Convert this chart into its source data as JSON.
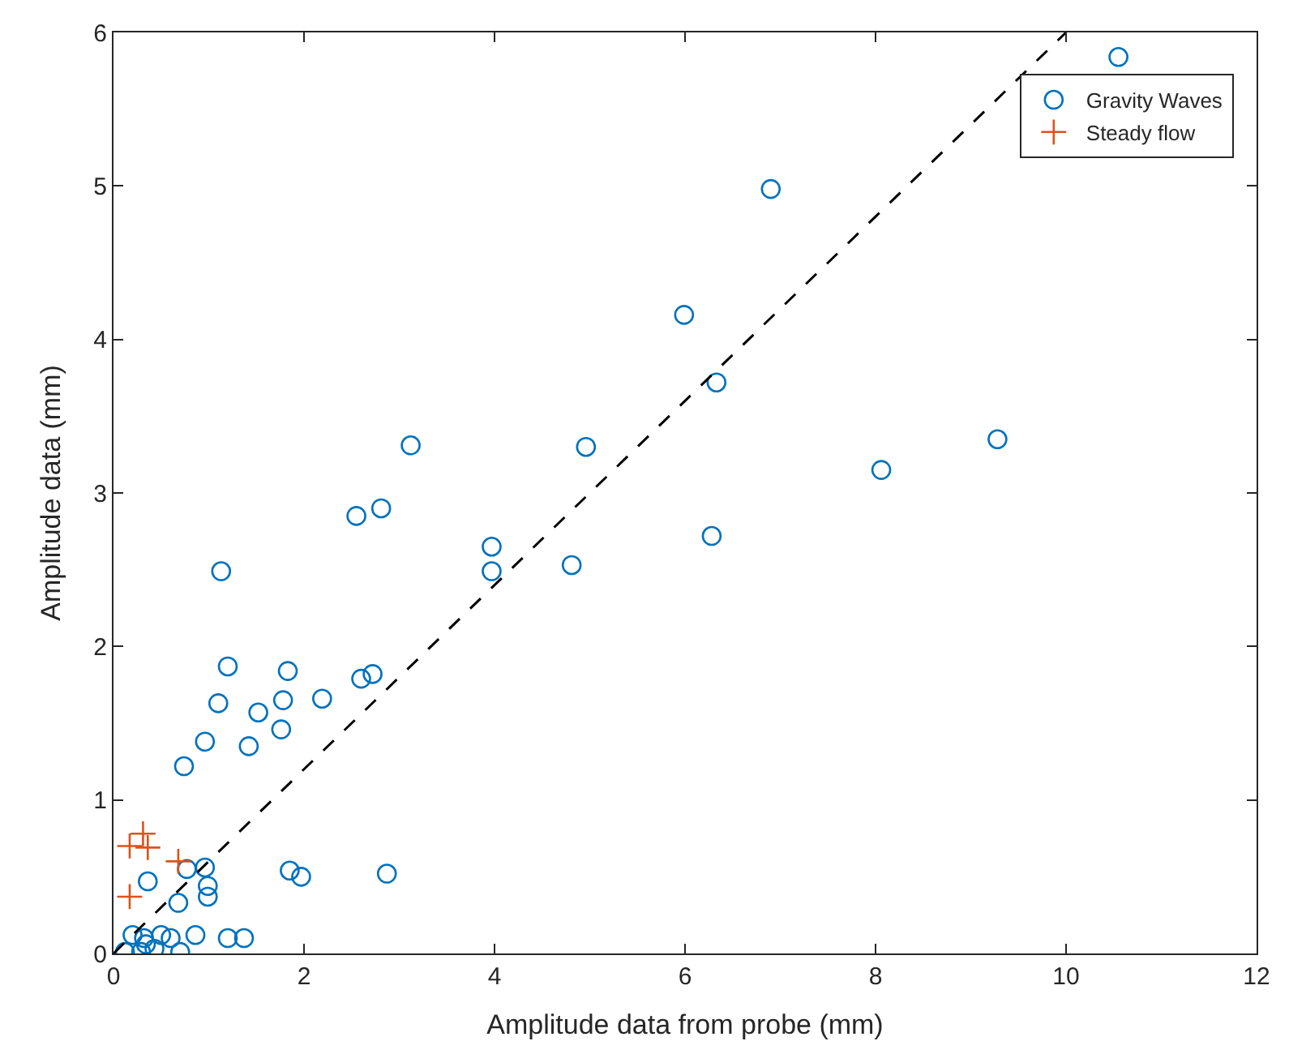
{
  "chart_data": {
    "type": "scatter",
    "xlabel": "Amplitude data from probe (mm)",
    "ylabel": "Amplitude data (mm)",
    "xlim": [
      0,
      12
    ],
    "xticks": [
      0,
      2,
      4,
      6,
      8,
      10,
      12
    ],
    "ylim": [
      0,
      6
    ],
    "yticks": [
      0,
      1,
      2,
      3,
      4,
      5,
      6
    ],
    "legend": "top right",
    "series": [
      {
        "name": "Gravity Waves",
        "color": "#0072bd",
        "marker": "circle",
        "x": [
          10.55,
          6.9,
          5.99,
          6.33,
          6.28,
          8.06,
          9.28,
          3.12,
          4.96,
          2.55,
          2.81,
          1.13,
          3.97,
          3.97,
          4.81,
          1.2,
          1.83,
          1.1,
          1.52,
          1.78,
          2.19,
          2.6,
          2.72,
          1.76,
          0.96,
          1.42,
          0.74,
          1.85,
          1.97,
          2.87,
          0.96,
          0.99,
          0.99,
          0.77,
          0.36,
          0.68,
          0.86,
          1.2,
          1.37,
          0.5,
          0.6,
          0.7,
          0.2,
          0.34,
          0.29,
          0.12,
          0.43,
          0.32
        ],
        "values": [
          5.84,
          4.98,
          4.16,
          3.72,
          2.72,
          3.15,
          3.35,
          3.31,
          3.3,
          2.85,
          2.9,
          2.49,
          2.65,
          2.49,
          2.53,
          1.87,
          1.84,
          1.63,
          1.57,
          1.65,
          1.66,
          1.79,
          1.82,
          1.46,
          1.38,
          1.35,
          1.22,
          0.54,
          0.5,
          0.52,
          0.56,
          0.44,
          0.37,
          0.55,
          0.47,
          0.33,
          0.12,
          0.1,
          0.1,
          0.12,
          0.1,
          0.01,
          0.12,
          0.06,
          0.01,
          0.01,
          0.03,
          0.1
        ]
      },
      {
        "name": "Steady flow",
        "color": "#d95319",
        "marker": "cross",
        "x": [
          0.31,
          0.17,
          0.36,
          0.68,
          0.17
        ],
        "values": [
          0.78,
          0.7,
          0.69,
          0.6,
          0.37
        ]
      },
      {
        "type": "line",
        "color": "#000000",
        "line_style": "dashed",
        "x": [
          0,
          10
        ],
        "values": [
          0,
          6
        ]
      }
    ]
  }
}
